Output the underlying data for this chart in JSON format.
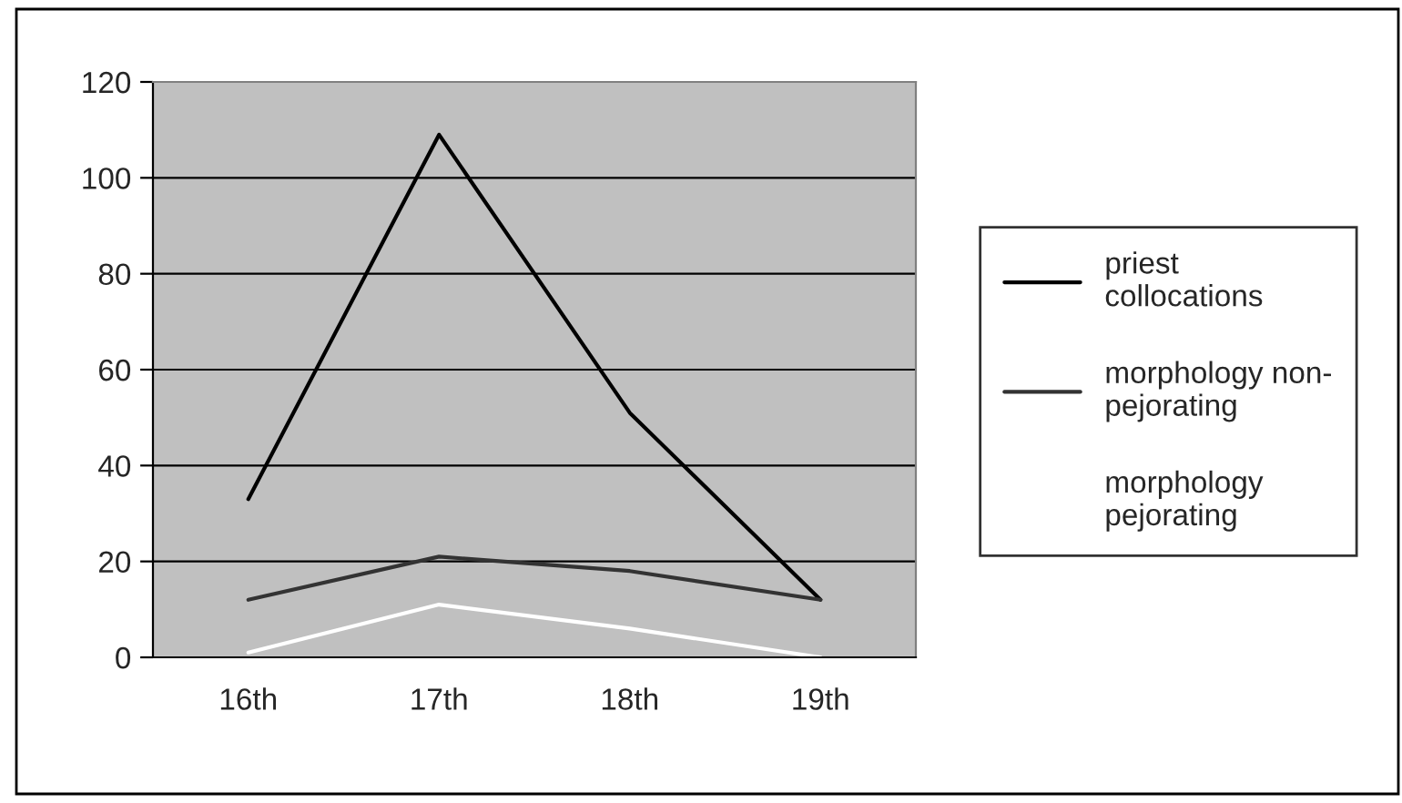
{
  "chart_data": {
    "type": "line",
    "categories": [
      "16th",
      "17th",
      "18th",
      "19th"
    ],
    "series": [
      {
        "name": "priest collocations",
        "color": "#000000",
        "values": [
          33,
          109,
          51,
          12
        ]
      },
      {
        "name": "morphology non-pejorating",
        "color": "#333333",
        "values": [
          12,
          21,
          18,
          12
        ]
      },
      {
        "name": "morphology pejorating",
        "color": "#ffffff",
        "values": [
          1,
          11,
          6,
          0
        ]
      }
    ],
    "ylim": [
      0,
      120
    ],
    "yticks": [
      0,
      20,
      40,
      60,
      80,
      100,
      120
    ],
    "grid": "y",
    "legend": "right",
    "marker": "none",
    "line_style": "solid"
  }
}
